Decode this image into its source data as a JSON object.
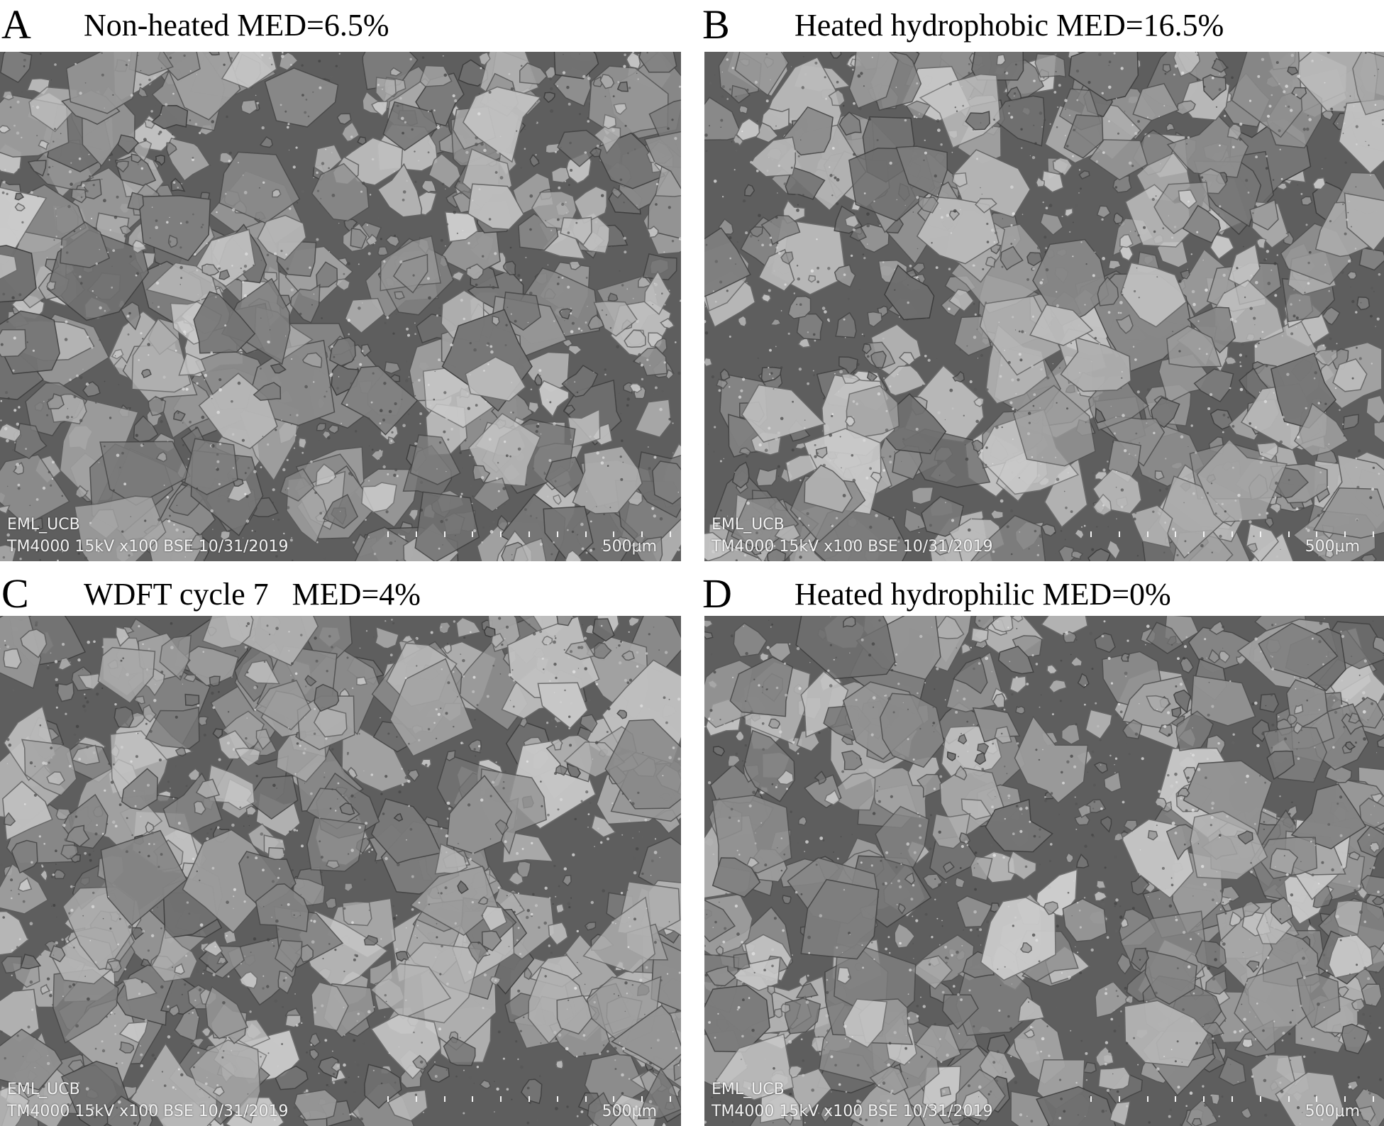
{
  "panels": [
    {
      "letter": "A",
      "title": "Non-heated MED=6.5%",
      "site_label": "EML_UCB",
      "meta_label": "TM4000 15kV x100 BSE 10/31/2019",
      "scale_label": "500μm"
    },
    {
      "letter": "B",
      "title": "Heated hydrophobic MED=16.5%",
      "site_label": "EML_UCB",
      "meta_label": "TM4000 15kV x100 BSE 10/31/2019",
      "scale_label": "500μm"
    },
    {
      "letter": "C",
      "title": "WDFT cycle 7   MED=4%",
      "site_label": "EML_UCB",
      "meta_label": "TM4000 15kV x100 BSE 10/31/2019",
      "scale_label": "500μm"
    },
    {
      "letter": "D",
      "title": "Heated hydrophilic MED=0%",
      "site_label": "EML_UCB",
      "meta_label": "TM4000 15kV x100 BSE 10/31/2019",
      "scale_label": "500μm"
    }
  ]
}
